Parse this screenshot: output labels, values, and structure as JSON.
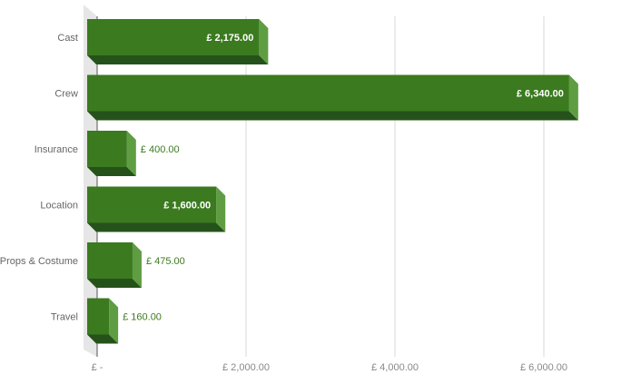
{
  "chart_data": {
    "type": "bar",
    "orientation": "horizontal",
    "style": "3d",
    "categories": [
      "Cast",
      "Crew",
      "Insurance",
      "Location",
      "Props & Costume",
      "Travel"
    ],
    "values": [
      2175,
      6340,
      400,
      1600,
      475,
      160
    ],
    "value_labels": [
      "£ 2,175.00",
      "£ 6,340.00",
      "£ 400.00",
      "£ 1,600.00",
      "£ 475.00",
      "£ 160.00"
    ],
    "x_ticks": [
      {
        "value": 0,
        "label": "£ -"
      },
      {
        "value": 2000,
        "label": "£ 2,000.00"
      },
      {
        "value": 4000,
        "label": "£ 4,000.00"
      },
      {
        "value": 6000,
        "label": "£ 6,000.00"
      }
    ],
    "xlim": [
      0,
      6600
    ],
    "grid": true,
    "legend": "none",
    "colors": {
      "bar_front": "#3b7a1f",
      "bar_side": "#5f9d42",
      "bar_bottom": "#25521a",
      "outside_label": "#3d7a1f",
      "gridline": "#d9d9d9",
      "wall": "#e6e6e6"
    }
  }
}
